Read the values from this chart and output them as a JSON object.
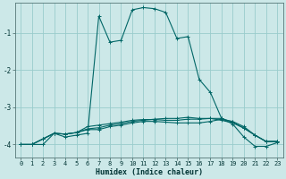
{
  "xlabel": "Humidex (Indice chaleur)",
  "ylabel": "",
  "bg_color": "#cce8e8",
  "grid_color": "#99cccc",
  "line_color": "#006666",
  "x_values": [
    0,
    1,
    2,
    3,
    4,
    5,
    6,
    7,
    8,
    9,
    10,
    11,
    12,
    13,
    14,
    15,
    16,
    17,
    18,
    19,
    20,
    21,
    22,
    23
  ],
  "series1": [
    -4.0,
    -4.0,
    -4.0,
    -3.7,
    -3.8,
    -3.75,
    -3.7,
    -0.55,
    -1.25,
    -1.2,
    -0.38,
    -0.32,
    -0.35,
    -0.45,
    -1.15,
    -1.1,
    -2.25,
    -2.6,
    -3.3,
    -3.45,
    -3.8,
    -4.05,
    -4.05,
    -3.95
  ],
  "series2": [
    -4.0,
    -4.0,
    -3.85,
    -3.7,
    -3.72,
    -3.68,
    -3.6,
    -3.6,
    -3.52,
    -3.48,
    -3.42,
    -3.38,
    -3.38,
    -3.4,
    -3.42,
    -3.42,
    -3.42,
    -3.38,
    -3.32,
    -3.38,
    -3.52,
    -3.75,
    -3.92,
    -3.92
  ],
  "series3": [
    -4.0,
    -4.0,
    -3.85,
    -3.7,
    -3.72,
    -3.68,
    -3.58,
    -3.55,
    -3.48,
    -3.44,
    -3.38,
    -3.35,
    -3.32,
    -3.3,
    -3.3,
    -3.27,
    -3.3,
    -3.3,
    -3.35,
    -3.42,
    -3.56,
    -3.75,
    -3.92,
    -3.92
  ],
  "series4": [
    -4.0,
    -4.0,
    -3.85,
    -3.7,
    -3.72,
    -3.68,
    -3.52,
    -3.48,
    -3.44,
    -3.4,
    -3.35,
    -3.33,
    -3.33,
    -3.35,
    -3.35,
    -3.32,
    -3.32,
    -3.3,
    -3.3,
    -3.4,
    -3.56,
    -3.75,
    -3.92,
    -3.92
  ],
  "ylim": [
    -4.35,
    -0.2
  ],
  "xlim": [
    -0.5,
    23.5
  ],
  "yticks": [
    -4,
    -3,
    -2,
    -1
  ],
  "xticks": [
    0,
    1,
    2,
    3,
    4,
    5,
    6,
    7,
    8,
    9,
    10,
    11,
    12,
    13,
    14,
    15,
    16,
    17,
    18,
    19,
    20,
    21,
    22,
    23
  ],
  "xlabel_fontsize": 6.0,
  "tick_fontsize": 5.0,
  "linewidth": 0.8,
  "markersize": 2.5,
  "markeredgewidth": 0.7
}
